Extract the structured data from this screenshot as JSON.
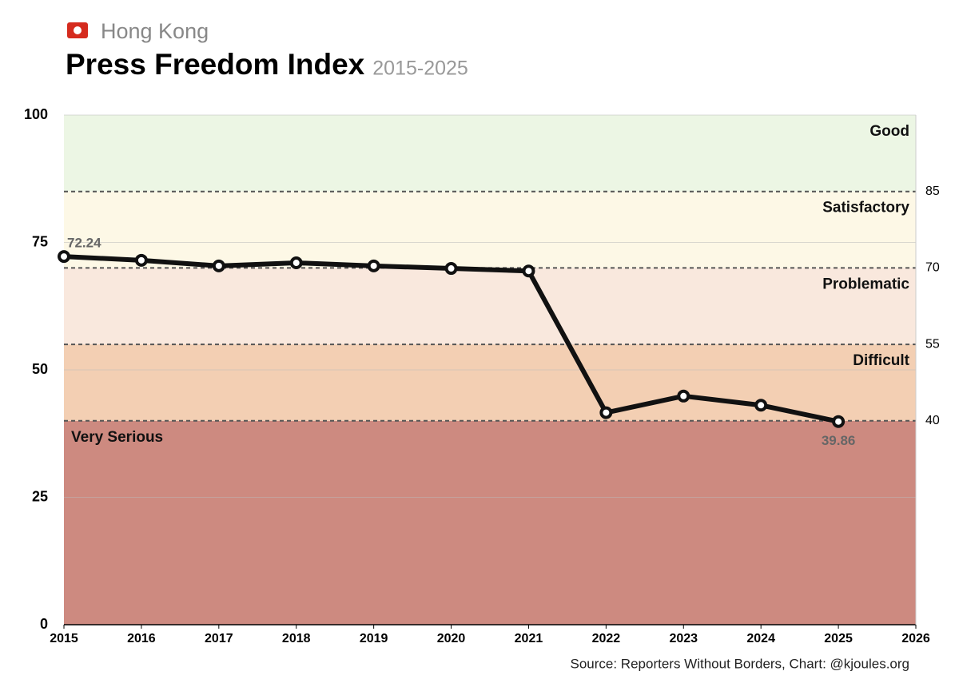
{
  "chart_data": {
    "type": "line",
    "subtitle": "Hong Kong",
    "title": "Press Freedom Index",
    "title_note": "2015-2025",
    "source": "Source: Reporters Without Borders, Chart: @kjoules.org",
    "x": [
      2015,
      2016,
      2017,
      2018,
      2019,
      2020,
      2021,
      2022,
      2023,
      2024,
      2025
    ],
    "series": [
      {
        "name": "Hong Kong",
        "color": "#111111",
        "values": [
          72.24,
          71.5,
          70.4,
          71.0,
          70.4,
          69.9,
          69.4,
          41.6,
          44.86,
          43.06,
          39.86
        ],
        "value_labels": [
          "72.24",
          null,
          null,
          null,
          null,
          null,
          null,
          null,
          null,
          null,
          "39.86"
        ]
      }
    ],
    "xlim": [
      2015,
      2026
    ],
    "xticks": [
      2015,
      2016,
      2017,
      2018,
      2019,
      2020,
      2021,
      2022,
      2023,
      2024,
      2025,
      2026
    ],
    "ylim": [
      0,
      100
    ],
    "yticks": [
      0,
      25,
      50,
      75,
      100
    ],
    "y2lim": [
      0,
      100
    ],
    "y2ticks": [
      40,
      55,
      70,
      85
    ],
    "grid": true,
    "zones": [
      {
        "name": "Very Serious",
        "color": "#cd8a80"
      },
      {
        "name": "Difficult",
        "color": "#f3cfb3"
      },
      {
        "name": "Problematic",
        "color": "#f9e8dd"
      },
      {
        "name": "Satisfactory",
        "color": "#fdf8e6"
      },
      {
        "name": "Good",
        "color": "#ecf6e4"
      }
    ]
  }
}
